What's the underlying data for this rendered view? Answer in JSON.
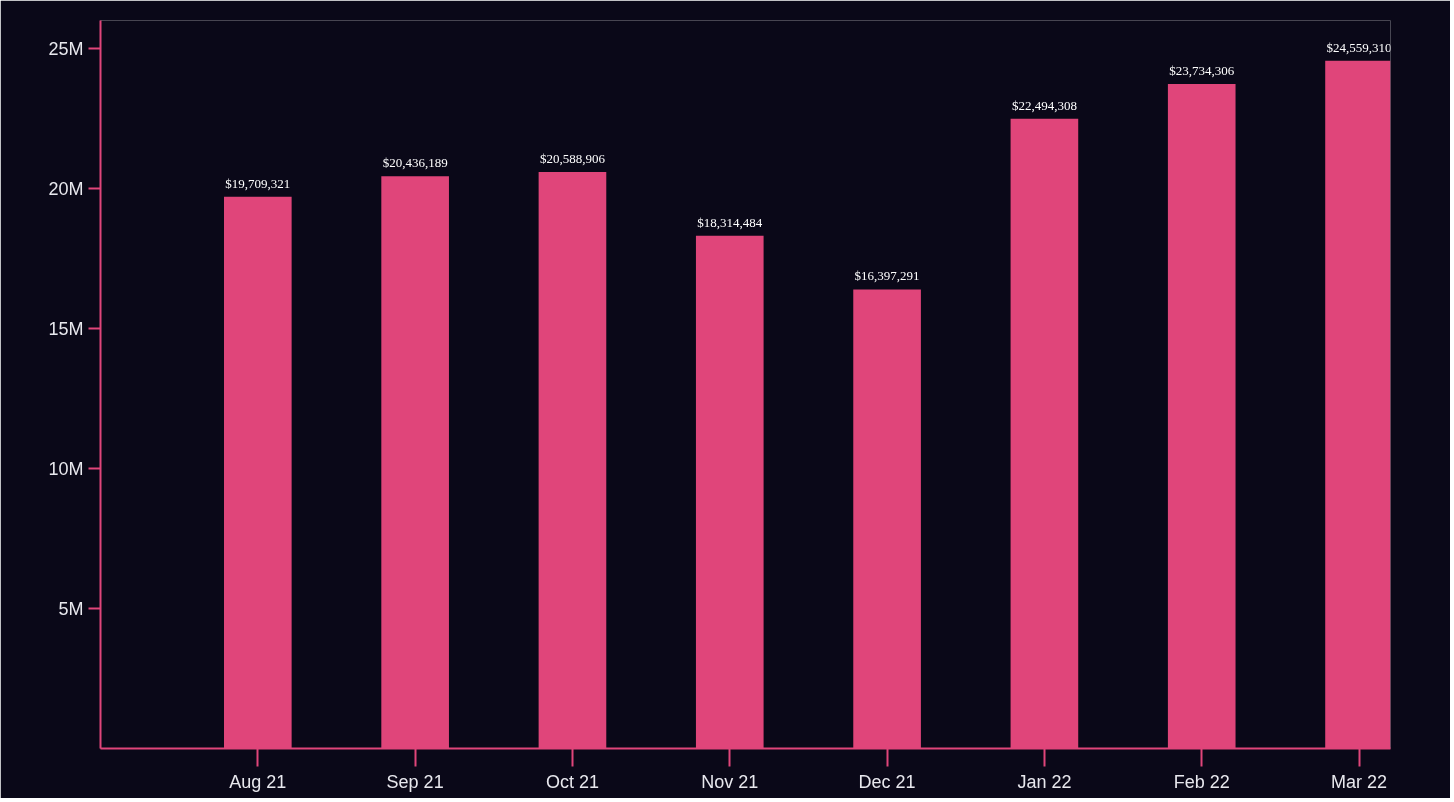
{
  "chart_data": {
    "type": "bar",
    "categories": [
      "Aug 21",
      "Sep 21",
      "Oct 21",
      "Nov 21",
      "Dec 21",
      "Jan 22",
      "Feb 22",
      "Mar 22"
    ],
    "values": [
      19709321,
      20436189,
      20588906,
      18314484,
      16397291,
      22494308,
      23734306,
      24559310
    ],
    "color": "#e0457a",
    "ylim": [
      0,
      26000000
    ],
    "yticks": [
      {
        "value": 5000000,
        "label": "5M"
      },
      {
        "value": 10000000,
        "label": "10M"
      },
      {
        "value": 15000000,
        "label": "15M"
      },
      {
        "value": 20000000,
        "label": "20M"
      },
      {
        "value": 25000000,
        "label": "25M"
      }
    ],
    "value_labels": [
      "$19,709,321",
      "$20,436,189",
      "$20,588,906",
      "$18,314,484",
      "$16,397,291",
      "$22,494,308",
      "$23,734,306",
      "$24,559,310"
    ],
    "grid": false
  }
}
